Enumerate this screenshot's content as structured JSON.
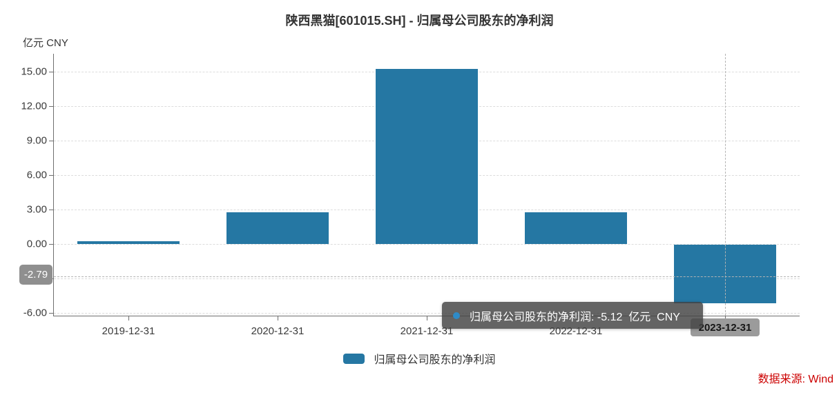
{
  "title": "陕西黑猫[601015.SH] - 归属母公司股东的净利润",
  "unit_label": "亿元  CNY",
  "chart_data": {
    "type": "bar",
    "title": "陕西黑猫[601015.SH] - 归属母公司股东的净利润",
    "categories": [
      "2019-12-31",
      "2020-12-31",
      "2021-12-31",
      "2022-12-31",
      "2023-12-31"
    ],
    "series": [
      {
        "name": "归属母公司股东的净利润",
        "values": [
          0.27,
          2.76,
          15.22,
          2.79,
          -5.12
        ]
      }
    ],
    "xlabel": "",
    "ylabel": "亿元 CNY",
    "ylim": [
      -6.35,
      16.55
    ],
    "yticks": [
      {
        "value": 15,
        "label": "15.00"
      },
      {
        "value": 12,
        "label": "12.00"
      },
      {
        "value": 9,
        "label": "9.00"
      },
      {
        "value": 6,
        "label": "6.00"
      },
      {
        "value": 3,
        "label": "3.00"
      },
      {
        "value": 0,
        "label": "0.00"
      },
      {
        "value": -3,
        "label": "-3.00"
      },
      {
        "value": -6,
        "label": "-6.00"
      }
    ],
    "grid": true,
    "bar_color": "#2577a3",
    "legend_position": "bottom",
    "crosshair": {
      "category_index": 4,
      "y_value": -2.79
    }
  },
  "axis_pointer": {
    "y_badge_label": "-2.79",
    "x_badge_label": "2023-12-31"
  },
  "tooltip": {
    "text": "归属母公司股东的净利润: -5.12  亿元  CNY",
    "series_name": "归属母公司股东的净利润",
    "value": "-5.12",
    "unit": "亿元 CNY",
    "dot_color": "#2e8bc8"
  },
  "legend": {
    "label": "归属母公司股东的净利润"
  },
  "source": {
    "text": "数据来源: Wind"
  },
  "colors": {
    "bar": "#2577a3",
    "grid": "#dcdcdc",
    "axis": "#6e6e6e",
    "title_text": "#333333",
    "badge_bg": "#8f8f8f",
    "tooltip_bg": "rgba(66,66,66,0.82)",
    "source_text": "#cc0000"
  }
}
